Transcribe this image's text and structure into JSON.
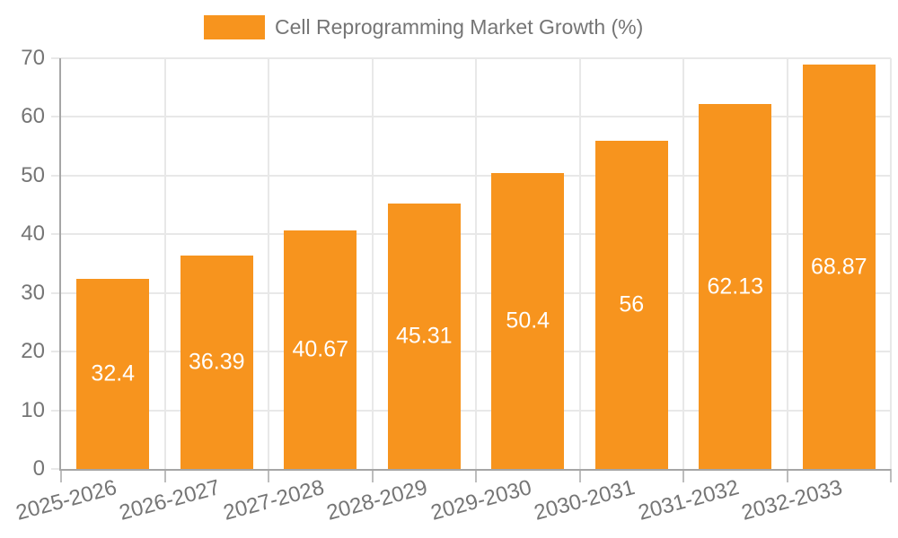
{
  "chart_data": {
    "type": "bar",
    "title": "",
    "legend": {
      "label": "Cell Reprogramming Market Growth (%)",
      "position": "top"
    },
    "categories": [
      "2025-2026",
      "2026-2027",
      "2027-2028",
      "2028-2029",
      "2029-2030",
      "2030-2031",
      "2031-2032",
      "2032-2033"
    ],
    "values": [
      32.4,
      36.39,
      40.67,
      45.31,
      50.4,
      56,
      62.13,
      68.87
    ],
    "value_labels": [
      "32.4",
      "36.39",
      "40.67",
      "45.31",
      "50.4",
      "56",
      "62.13",
      "68.87"
    ],
    "xlabel": "",
    "ylabel": "",
    "ylim": [
      0,
      70
    ],
    "yticks": [
      0,
      10,
      20,
      30,
      40,
      50,
      60,
      70
    ],
    "grid": "on",
    "colors": {
      "bar": "#F7941E",
      "bar_label_text": "#ffffff",
      "axis_text": "#757575",
      "gridline": "#e8e8e8",
      "axis_line": "#a6a6a6"
    }
  }
}
